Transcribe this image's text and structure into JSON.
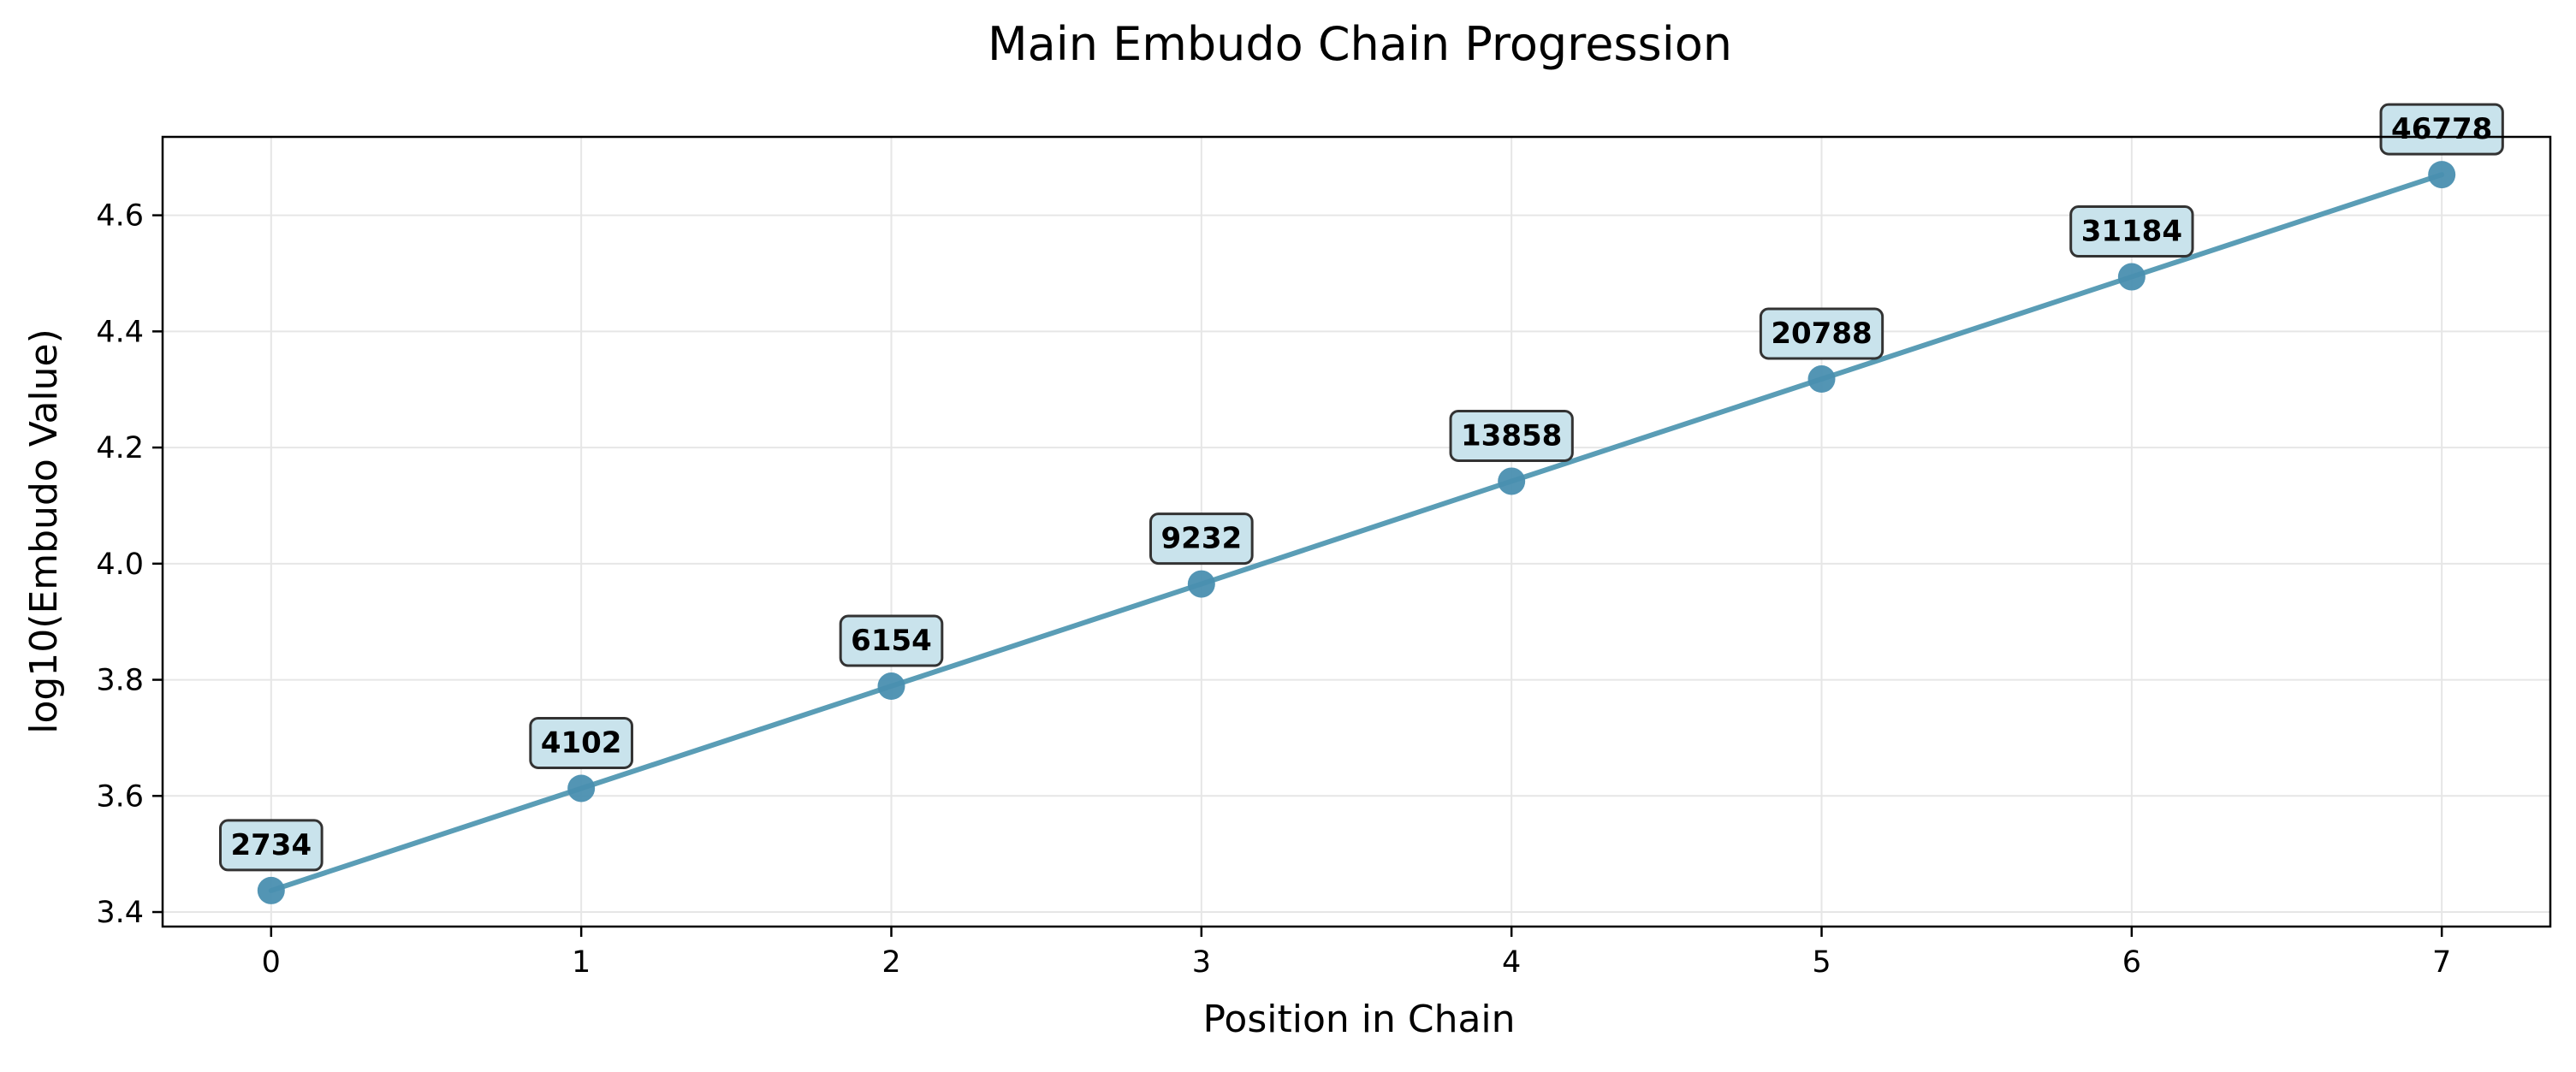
{
  "chart_data": {
    "type": "line",
    "title": "Main Embudo Chain Progression",
    "xlabel": "Position in Chain",
    "ylabel": "log10(Embudo Value)",
    "x": [
      0,
      1,
      2,
      3,
      4,
      5,
      6,
      7
    ],
    "y": [
      3.437,
      3.613,
      3.789,
      3.965,
      4.142,
      4.318,
      4.494,
      4.67
    ],
    "point_labels": [
      "2734",
      "4102",
      "6154",
      "9232",
      "13858",
      "20788",
      "31184",
      "46778"
    ],
    "x_ticks": [
      "0",
      "1",
      "2",
      "3",
      "4",
      "5",
      "6",
      "7"
    ],
    "y_ticks": [
      "3.4",
      "3.6",
      "3.8",
      "4.0",
      "4.2",
      "4.4",
      "4.6"
    ],
    "xlim": [
      -0.35,
      7.35
    ],
    "ylim": [
      3.375,
      4.735
    ],
    "grid": true,
    "legend": "none",
    "colors": {
      "line": "#5a9db6",
      "marker": "#4a8fb0",
      "label_fill": "#c9e3ec",
      "label_border": "#333333",
      "grid": "#e6e6e6"
    }
  }
}
